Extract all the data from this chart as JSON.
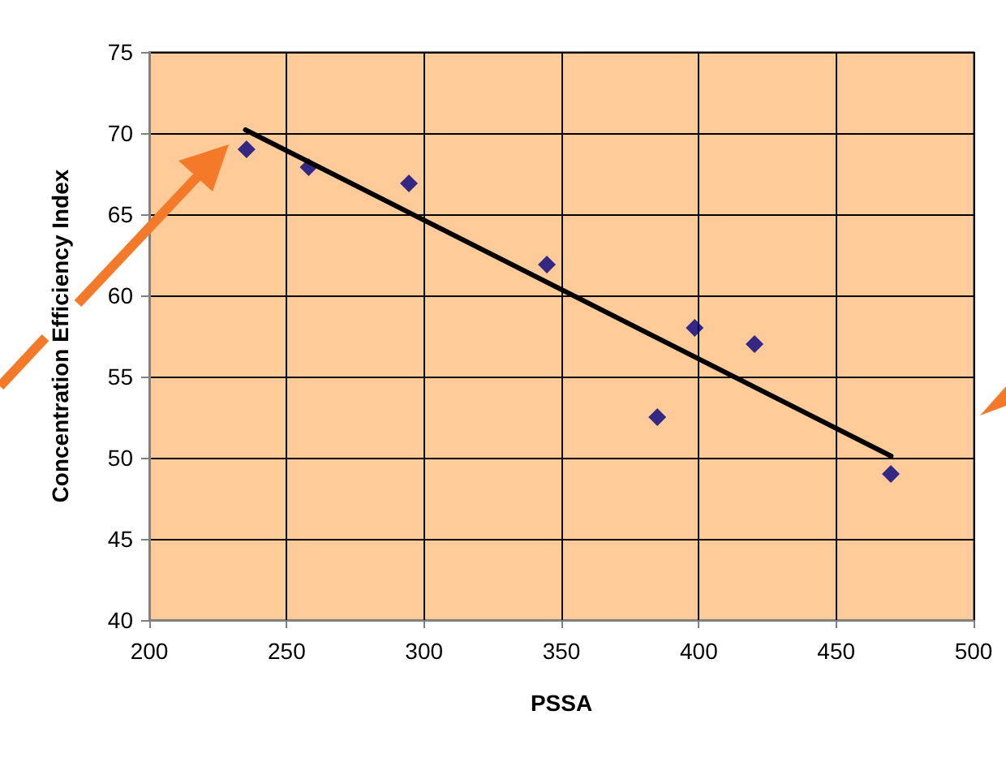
{
  "chart_data": {
    "type": "scatter",
    "xlabel": "PSSA",
    "ylabel": "Concentration Efficiency Index",
    "x": [
      235.4,
      258,
      294.5,
      344.7,
      384.9,
      398.5,
      420.3,
      469.9
    ],
    "series": [
      {
        "color": "#000080",
        "marker": "diamond",
        "values": [
          69.0,
          67.9,
          66.9,
          61.9,
          52.5,
          58.0,
          57.0,
          49.0
        ]
      },
      {
        "type": "line",
        "color": "#000000",
        "marker": "none",
        "line_style": "solid",
        "x": [
          235,
          470
        ],
        "values": [
          70.2,
          50.1
        ]
      }
    ],
    "xlim": [
      200,
      500
    ],
    "xticks": [
      200,
      250,
      300,
      350,
      400,
      450,
      500
    ],
    "ylim": [
      40,
      75
    ],
    "yticks": [
      40,
      45,
      50,
      55,
      60,
      65,
      70,
      75
    ],
    "grid": true
  }
}
